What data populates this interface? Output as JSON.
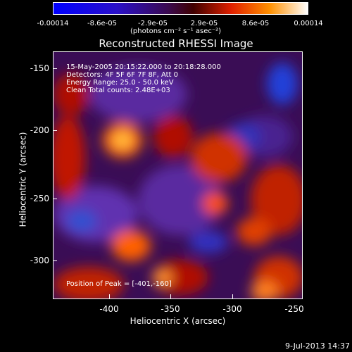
{
  "colorbar": {
    "ticks": [
      "-0.00014",
      "-8.6e-05",
      "-2.9e-05",
      "2.9e-05",
      "8.6e-05",
      "0.00014"
    ],
    "units": "(photons cm⁻² s⁻¹ asec⁻²)"
  },
  "title": "Reconstructed RHESSI Image",
  "annotation": {
    "line1": "15-May-2005 20:15:22.000 to 20:18:28.000",
    "line2": "Detectors: 4F 5F 6F 7F 8F, Att 0",
    "line3": "Energy Range: 25.0 - 50.0 keV",
    "line4": "Clean     Total counts: 2.48E+03",
    "peak": "Position of Peak = [-401,-160]"
  },
  "axes": {
    "xlabel": "Heliocentric X (arcsec)",
    "ylabel": "Heliocentric Y (arcsec)",
    "xticks": [
      "-400",
      "-350",
      "-300",
      "-250"
    ],
    "yticks": [
      "-150",
      "-200",
      "-250",
      "-300"
    ]
  },
  "footer_date": "9-Jul-2013 14:37"
}
